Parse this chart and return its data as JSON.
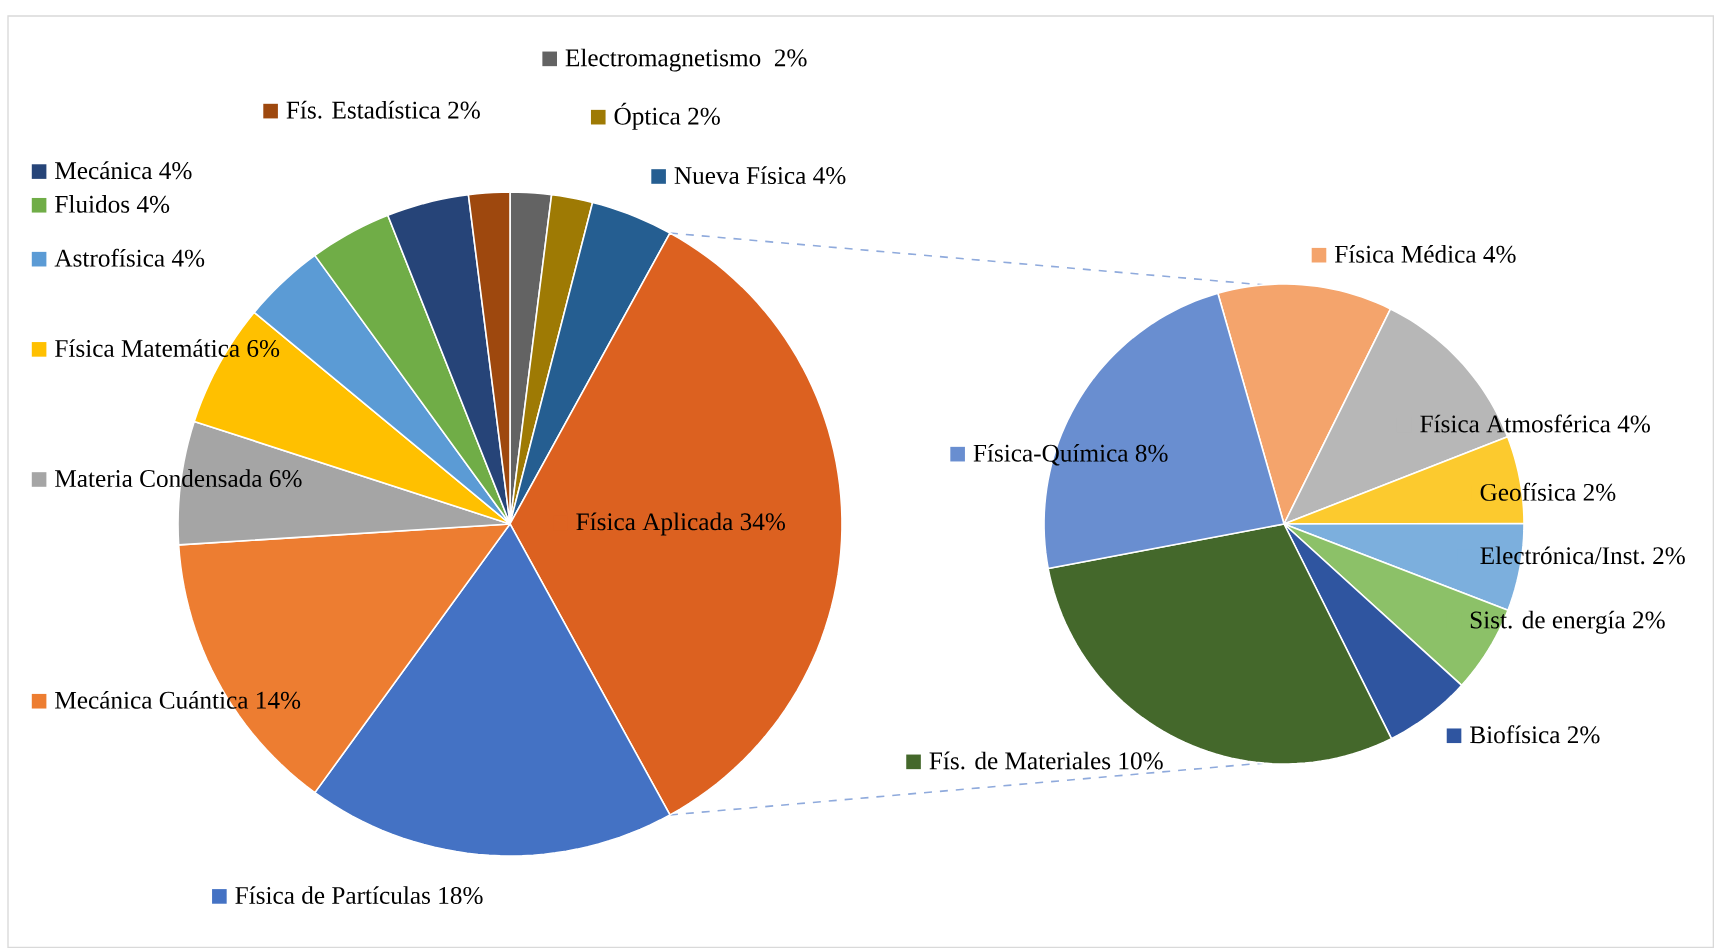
{
  "chart_data": [
    {
      "type": "pie",
      "categories": [
        "Electromagnetismo ",
        "Óptica",
        "Nueva Física",
        "Física Aplicada",
        "Física de Partículas",
        "Mecánica Cuántica",
        "Materia Condensada",
        "Física Matemática",
        "Astrofísica",
        "Fluidos",
        "Mecánica",
        "Fís. Estadística"
      ],
      "values": [
        2,
        2,
        4,
        34,
        18,
        14,
        6,
        6,
        4,
        4,
        4,
        2
      ],
      "value_labels": [
        "2%",
        "2%",
        "4%",
        "34%",
        "18%",
        "14%",
        "6%",
        "6%",
        "4%",
        "4%",
        "4%",
        "2%"
      ],
      "legend": "left",
      "colors": [
        "#636363",
        "#9e7a04",
        "#255e91",
        "#dc6120",
        "#4472c4",
        "#ed7d31",
        "#a5a5a5",
        "#ffc000",
        "#5b9bd5",
        "#70ad47",
        "#264478",
        "#9e480e"
      ]
    },
    {
      "type": "pie",
      "categories": [
        "Física Médica",
        "Física Atmosférica",
        "Geofísica",
        "Electrónica/Inst.",
        "Sist. de energía",
        "Biofísica",
        "Fís. de Materiales",
        "Física-Química"
      ],
      "values": [
        4,
        4,
        2,
        2,
        2,
        2,
        10,
        8
      ],
      "value_labels": [
        "4%",
        "4%",
        "2%",
        "2%",
        "2%",
        "2%",
        "10%",
        "8%"
      ],
      "legend": "top left",
      "colors": [
        "#f4a46c",
        "#b7b7b7",
        "#fcca2e",
        "#7cafdd",
        "#8cc168",
        "#2f55a0",
        "#44682b",
        "#698ed0"
      ]
    }
  ]
}
